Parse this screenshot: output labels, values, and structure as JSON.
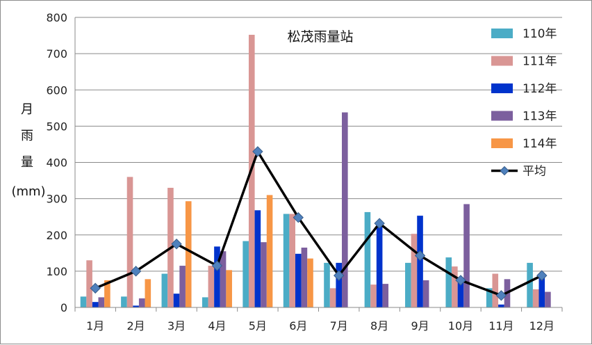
{
  "chart_data": {
    "type": "bar",
    "title": "松茂雨量站",
    "ylabel_chars": [
      "月",
      "雨",
      "量"
    ],
    "ylabel_unit": "(mm)",
    "xlabel": "",
    "ylim": [
      0,
      800
    ],
    "yticks": [
      0,
      100,
      200,
      300,
      400,
      500,
      600,
      700,
      800
    ],
    "grid": true,
    "legend_position": "right",
    "categories": [
      "1月",
      "2月",
      "3月",
      "4月",
      "5月",
      "6月",
      "7月",
      "8月",
      "9月",
      "10月",
      "11月",
      "12月"
    ],
    "series": [
      {
        "name": "110年",
        "type": "bar",
        "color": "#4bacc6",
        "values": [
          30,
          30,
          93,
          28,
          183,
          258,
          123,
          263,
          123,
          138,
          53,
          123
        ]
      },
      {
        "name": "111年",
        "type": "bar",
        "color": "#d99694",
        "values": [
          130,
          360,
          330,
          115,
          752,
          258,
          53,
          63,
          203,
          113,
          93,
          50
        ]
      },
      {
        "name": "112年",
        "type": "bar",
        "color": "#0033cc",
        "values": [
          15,
          5,
          38,
          168,
          268,
          148,
          123,
          228,
          253,
          68,
          8,
          85
        ]
      },
      {
        "name": "113年",
        "type": "bar",
        "color": "#7c5f9e",
        "values": [
          28,
          25,
          115,
          155,
          180,
          165,
          538,
          65,
          75,
          285,
          78,
          43
        ]
      },
      {
        "name": "114年",
        "type": "bar",
        "color": "#f79646",
        "values": [
          75,
          78,
          293,
          103,
          310,
          135,
          null,
          null,
          null,
          null,
          null,
          null
        ]
      },
      {
        "name": "平均",
        "type": "line",
        "color": "#000000",
        "marker_color": "#4f81bd",
        "values": [
          53,
          100,
          175,
          115,
          430,
          248,
          88,
          232,
          143,
          75,
          33,
          88
        ]
      }
    ]
  }
}
